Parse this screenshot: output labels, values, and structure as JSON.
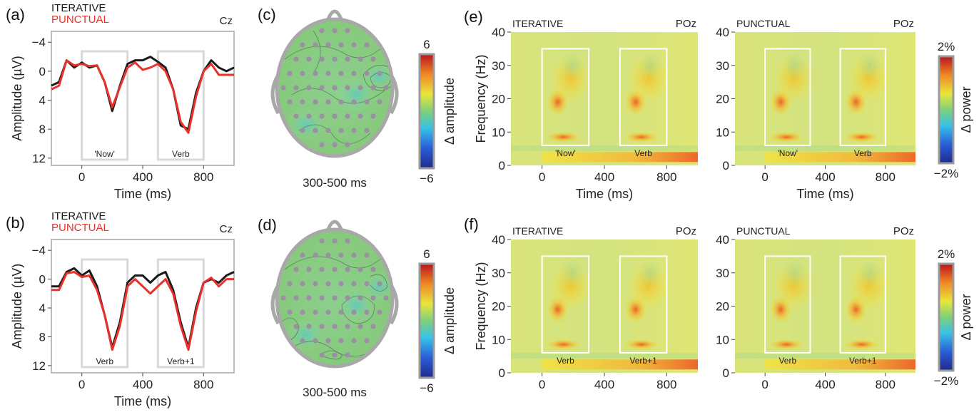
{
  "colors": {
    "iterative": "#1a1a1a",
    "punctual": "#e8312b",
    "frame": "#a6a6a6",
    "window": "#d9d9d9"
  },
  "erp_panels": [
    {
      "letter": "a",
      "legend": [
        "ITERATIVE",
        "PUNCTUAL"
      ],
      "electrode": "Cz",
      "ylabel": "Amplitude (µV)",
      "xlabel": "Time (ms)",
      "window_labels": [
        "'Now'",
        "Verb"
      ]
    },
    {
      "letter": "b",
      "legend": [
        "ITERATIVE",
        "PUNCTUAL"
      ],
      "electrode": "Cz",
      "ylabel": "Amplitude (µV)",
      "xlabel": "Time (ms)",
      "window_labels": [
        "Verb",
        "Verb+1"
      ]
    }
  ],
  "topo_panels": [
    {
      "letter": "c",
      "caption": "300-500 ms",
      "cbar_label": "Δ amplitude",
      "cbar_max": "6",
      "cbar_min": "−6"
    },
    {
      "letter": "d",
      "caption": "300-500 ms",
      "cbar_label": "Δ amplitude",
      "cbar_max": "6",
      "cbar_min": "−6"
    }
  ],
  "tf_rows": [
    {
      "letter": "e",
      "ylabel": "Frequency (Hz)",
      "xlabel": "Time (ms)",
      "cbar_label": "Δ power",
      "cbar_max": "2%",
      "cbar_min": "−2%",
      "subplots": [
        {
          "condition": "ITERATIVE",
          "electrode": "POz",
          "window_labels": [
            "'Now'",
            "Verb"
          ]
        },
        {
          "condition": "PUNCTUAL",
          "electrode": "POz",
          "window_labels": [
            "'Now'",
            "Verb"
          ]
        }
      ]
    },
    {
      "letter": "f",
      "ylabel": "Frequency (Hz)",
      "xlabel": "",
      "cbar_label": "Δ power",
      "cbar_max": "2%",
      "cbar_min": "−2%",
      "subplots": [
        {
          "condition": "ITERATIVE",
          "electrode": "POz",
          "window_labels": [
            "Verb",
            "Verb+1"
          ]
        },
        {
          "condition": "PUNCTUAL",
          "electrode": "POz",
          "window_labels": [
            "Verb",
            "Verb+1"
          ]
        }
      ]
    }
  ],
  "chart_data": [
    {
      "type": "line",
      "panel": "a",
      "x": [
        -200,
        -150,
        -100,
        -50,
        0,
        50,
        100,
        150,
        200,
        250,
        300,
        350,
        400,
        450,
        500,
        550,
        600,
        650,
        700,
        750,
        800,
        850,
        900,
        950,
        1000
      ],
      "series": [
        {
          "name": "ITERATIVE",
          "values": [
            2,
            1.5,
            -1.5,
            -0.5,
            -1.2,
            -0.5,
            -0.8,
            1.5,
            5.5,
            2,
            -1,
            -1.5,
            -1.5,
            -2,
            -1.3,
            -0.5,
            2.5,
            7.5,
            8,
            3,
            0,
            -1.5,
            -0.5,
            0,
            -0.5
          ]
        },
        {
          "name": "PUNCTUAL",
          "values": [
            2.5,
            2,
            -1.5,
            -0.8,
            -1,
            -0.7,
            -0.8,
            1.5,
            5,
            2.2,
            -0.5,
            -1.2,
            -0.2,
            -0.5,
            -1,
            0,
            2.5,
            7,
            8.5,
            3.5,
            0,
            -1,
            0.5,
            0.5,
            0.5
          ]
        }
      ],
      "xlim": [
        -200,
        1000
      ],
      "ylim": [
        13,
        -5.5
      ],
      "xticks": [
        0,
        400,
        800
      ],
      "yticks": [
        -4,
        0,
        4,
        8,
        12
      ],
      "xlabel": "Time (ms)",
      "ylabel": "Amplitude (µV)",
      "windows": [
        [
          0,
          300
        ],
        [
          500,
          800
        ]
      ]
    },
    {
      "type": "line",
      "panel": "b",
      "x": [
        -200,
        -150,
        -100,
        -50,
        0,
        50,
        100,
        150,
        200,
        250,
        300,
        350,
        400,
        450,
        500,
        550,
        600,
        650,
        700,
        750,
        800,
        850,
        900,
        950,
        1000
      ],
      "series": [
        {
          "name": "ITERATIVE",
          "values": [
            1,
            1,
            -1,
            -1.5,
            -0.5,
            -1.2,
            1,
            5,
            9.5,
            6,
            0.5,
            -0.5,
            -0.5,
            0.5,
            -0.5,
            -1,
            1.5,
            6,
            9.5,
            4,
            0.5,
            0,
            0.5,
            -0.5,
            -1
          ]
        },
        {
          "name": "PUNCTUAL",
          "values": [
            1.5,
            1.5,
            -0.8,
            -1,
            -0.3,
            -0.5,
            1.5,
            5,
            9.8,
            6.5,
            1,
            0,
            1,
            2,
            1,
            0,
            2,
            6.5,
            9.8,
            4.5,
            0.5,
            -0.2,
            1,
            0,
            0
          ]
        }
      ],
      "xlim": [
        -200,
        1000
      ],
      "ylim": [
        13,
        -5.5
      ],
      "xticks": [
        0,
        400,
        800
      ],
      "yticks": [
        -4,
        0,
        4,
        8,
        12
      ],
      "xlabel": "Time (ms)",
      "ylabel": "Amplitude (µV)",
      "windows": [
        [
          0,
          300
        ],
        [
          500,
          800
        ]
      ]
    },
    {
      "type": "heatmap",
      "panel": "e",
      "subplots": [
        "ITERATIVE",
        "PUNCTUAL"
      ],
      "xlim": [
        -200,
        1000
      ],
      "ylim": [
        0,
        40
      ],
      "xticks": [
        0,
        400,
        800
      ],
      "yticks": [
        0,
        10,
        20,
        30,
        40
      ],
      "xlabel": "Time (ms)",
      "ylabel": "Frequency (Hz)",
      "colorbar": {
        "label": "Δ power",
        "range": [
          "−2%",
          "2%"
        ]
      },
      "windows": [
        [
          0,
          300,
          6,
          35
        ],
        [
          500,
          800,
          6,
          35
        ]
      ]
    },
    {
      "type": "heatmap",
      "panel": "f",
      "subplots": [
        "ITERATIVE",
        "PUNCTUAL"
      ],
      "xlim": [
        -200,
        1000
      ],
      "ylim": [
        0,
        40
      ],
      "xticks": [
        0,
        400,
        800
      ],
      "yticks": [
        0,
        10,
        20,
        30,
        40
      ],
      "xlabel": "",
      "ylabel": "Frequency (Hz)",
      "colorbar": {
        "label": "Δ power",
        "range": [
          "−2%",
          "2%"
        ]
      },
      "windows": [
        [
          0,
          300,
          6,
          35
        ],
        [
          500,
          800,
          6,
          35
        ]
      ]
    }
  ]
}
